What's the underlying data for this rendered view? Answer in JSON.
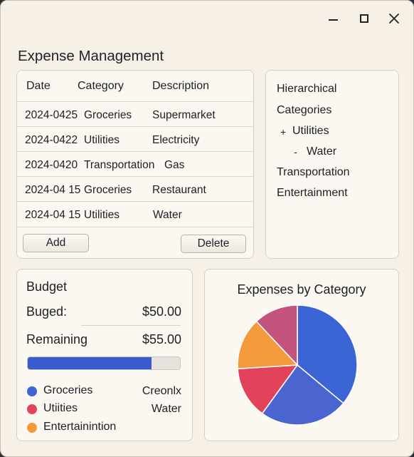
{
  "app": {
    "title": "Expense Management"
  },
  "window_controls": {
    "minimize": "minimize",
    "maximize": "maximize",
    "close": "close"
  },
  "table": {
    "headers": [
      "Date",
      "Category",
      "Description"
    ],
    "rows": [
      [
        "2024-0425",
        "Groceries",
        "Supermarket"
      ],
      [
        "2024-0422",
        "Utilities",
        "Electricity"
      ],
      [
        "2024-0420",
        "Transportation",
        "Gas"
      ],
      [
        "2024-04 15",
        "Groceries",
        "Restaurant"
      ],
      [
        "2024-04 15",
        "Utilities",
        "Water"
      ]
    ],
    "add_label": "Add",
    "delete_label": "Delete"
  },
  "tree": {
    "heading_1": "Hierarchical",
    "heading_2": "Categories",
    "utilities_marker": "+",
    "utilities": "Utilities",
    "water_marker": "-",
    "water": "Water",
    "transportation": "Transportation",
    "entertainment": "Entertainment"
  },
  "budget": {
    "title": "Budget",
    "budgeted_label": "Buged:",
    "budgeted_value": "$50.00",
    "remaining_label": "Remaining",
    "remaining_value": "$55.00",
    "progress_fraction": 0.815,
    "accent_color": "#3a5bd0",
    "legend": [
      {
        "label": "Groceries",
        "value": "Creonlx",
        "color": "#3f64d6"
      },
      {
        "label": "Utiities",
        "value": "Water",
        "color": "#e0445a"
      },
      {
        "label": "Entertainintion",
        "value": "",
        "color": "#f29a3a"
      }
    ]
  },
  "chart_data": {
    "type": "pie",
    "title": "Expenses by Category",
    "slices": [
      {
        "value": 36,
        "color": "#3b64d4"
      },
      {
        "value": 24,
        "color": "#4a64d0"
      },
      {
        "value": 14,
        "color": "#e2435b"
      },
      {
        "value": 14,
        "color": "#f49a3c"
      },
      {
        "value": 12,
        "color": "#c4547e"
      }
    ]
  }
}
